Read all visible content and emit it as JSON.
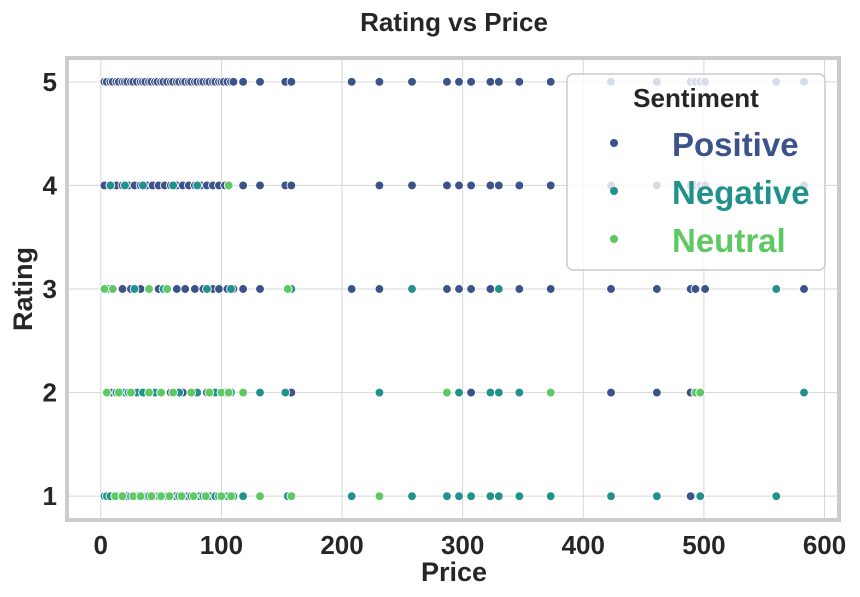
{
  "chart_data": {
    "type": "scatter",
    "title": "Rating vs Price",
    "xlabel": "Price",
    "ylabel": "Rating",
    "xlim": [
      -28,
      612
    ],
    "ylim": [
      0.77,
      5.23
    ],
    "xticks": [
      0,
      100,
      200,
      300,
      400,
      500,
      600
    ],
    "yticks": [
      1,
      2,
      3,
      4,
      5
    ],
    "grid": true,
    "legend": {
      "title": "Sentiment",
      "placement": "top-right"
    },
    "series": [
      {
        "name": "Positive",
        "color": "#3b528b",
        "x": [
          3,
          5,
          8,
          10,
          13,
          15,
          18,
          20,
          22,
          25,
          27,
          30,
          33,
          35,
          37,
          40,
          42,
          45,
          47,
          50,
          52,
          55,
          58,
          60,
          63,
          65,
          68,
          70,
          73,
          75,
          78,
          80,
          83,
          85,
          88,
          90,
          93,
          95,
          98,
          100,
          102,
          105,
          108,
          110,
          118,
          132,
          153,
          158,
          208,
          231,
          258,
          287,
          297,
          307,
          323,
          330,
          347,
          373,
          423,
          461,
          489,
          493,
          497,
          501,
          560,
          583,
          3,
          8,
          13,
          18,
          23,
          28,
          33,
          38,
          43,
          48,
          53,
          58,
          63,
          68,
          73,
          78,
          83,
          88,
          93,
          98,
          103,
          106,
          118,
          132,
          153,
          158,
          231,
          258,
          287,
          297,
          307,
          323,
          330,
          347,
          373,
          423,
          461,
          489,
          493,
          497,
          501,
          583,
          3,
          10,
          18,
          25,
          33,
          40,
          48,
          55,
          63,
          70,
          78,
          85,
          93,
          98,
          105,
          110,
          118,
          132,
          158,
          208,
          231,
          287,
          297,
          307,
          323,
          347,
          373,
          423,
          461,
          489,
          493,
          501,
          583,
          8,
          18,
          28,
          38,
          48,
          58,
          68,
          78,
          88,
          98,
          100,
          103,
          118,
          158,
          297,
          307,
          423,
          461,
          489,
          10,
          30,
          50,
          70,
          90,
          489,
          497
        ],
        "y": [
          5,
          5,
          5,
          5,
          5,
          5,
          5,
          5,
          5,
          5,
          5,
          5,
          5,
          5,
          5,
          5,
          5,
          5,
          5,
          5,
          5,
          5,
          5,
          5,
          5,
          5,
          5,
          5,
          5,
          5,
          5,
          5,
          5,
          5,
          5,
          5,
          5,
          5,
          5,
          5,
          5,
          5,
          5,
          5,
          5,
          5,
          5,
          5,
          5,
          5,
          5,
          5,
          5,
          5,
          5,
          5,
          5,
          5,
          5,
          5,
          5,
          5,
          5,
          5,
          5,
          5,
          4,
          4,
          4,
          4,
          4,
          4,
          4,
          4,
          4,
          4,
          4,
          4,
          4,
          4,
          4,
          4,
          4,
          4,
          4,
          4,
          4,
          4,
          4,
          4,
          4,
          4,
          4,
          4,
          4,
          4,
          4,
          4,
          4,
          4,
          4,
          4,
          4,
          4,
          4,
          4,
          4,
          4,
          3,
          3,
          3,
          3,
          3,
          3,
          3,
          3,
          3,
          3,
          3,
          3,
          3,
          3,
          3,
          3,
          3,
          3,
          3,
          3,
          3,
          3,
          3,
          3,
          3,
          3,
          3,
          3,
          3,
          3,
          3,
          3,
          3,
          2,
          2,
          2,
          2,
          2,
          2,
          2,
          2,
          2,
          2,
          2,
          2,
          2,
          2,
          2,
          2,
          2,
          2,
          2,
          1,
          1,
          1,
          1,
          1,
          1,
          1
        ]
      },
      {
        "name": "Negative",
        "color": "#21918c",
        "x": [
          8,
          20,
          35,
          60,
          80,
          3,
          6,
          28,
          52,
          88,
          108,
          158,
          258,
          330,
          560,
          5,
          13,
          20,
          23,
          30,
          35,
          45,
          50,
          60,
          65,
          80,
          95,
          108,
          132,
          153,
          231,
          297,
          323,
          330,
          347,
          583,
          3,
          5,
          8,
          12,
          15,
          18,
          22,
          25,
          30,
          35,
          38,
          40,
          45,
          48,
          52,
          55,
          58,
          62,
          65,
          70,
          72,
          75,
          78,
          82,
          85,
          88,
          90,
          95,
          98,
          100,
          105,
          110,
          118,
          132,
          155,
          208,
          258,
          287,
          297,
          307,
          323,
          330,
          347,
          373,
          423,
          461,
          497,
          560
        ],
        "y": [
          4,
          4,
          4,
          4,
          4,
          3,
          3,
          3,
          3,
          3,
          3,
          3,
          3,
          3,
          3,
          2,
          2,
          2,
          2,
          2,
          2,
          2,
          2,
          2,
          2,
          2,
          2,
          2,
          2,
          2,
          2,
          2,
          2,
          2,
          2,
          2,
          1,
          1,
          1,
          1,
          1,
          1,
          1,
          1,
          1,
          1,
          1,
          1,
          1,
          1,
          1,
          1,
          1,
          1,
          1,
          1,
          1,
          1,
          1,
          1,
          1,
          1,
          1,
          1,
          1,
          1,
          1,
          1,
          1,
          1,
          1,
          1,
          1,
          1,
          1,
          1,
          1,
          1,
          1,
          1,
          1,
          1,
          1,
          1
        ]
      },
      {
        "name": "Neutral",
        "color": "#5ec962",
        "x": [
          106,
          3,
          10,
          40,
          55,
          155,
          5,
          15,
          25,
          40,
          50,
          60,
          75,
          90,
          100,
          106,
          118,
          287,
          373,
          493,
          497,
          12,
          18,
          27,
          33,
          42,
          50,
          57,
          67,
          77,
          87,
          100,
          108,
          132,
          158,
          231
        ],
        "y": [
          4,
          3,
          3,
          3,
          3,
          3,
          2,
          2,
          2,
          2,
          2,
          2,
          2,
          2,
          2,
          2,
          2,
          2,
          2,
          2,
          2,
          1,
          1,
          1,
          1,
          1,
          1,
          1,
          1,
          1,
          1,
          1,
          1,
          1,
          1,
          1
        ]
      }
    ]
  }
}
